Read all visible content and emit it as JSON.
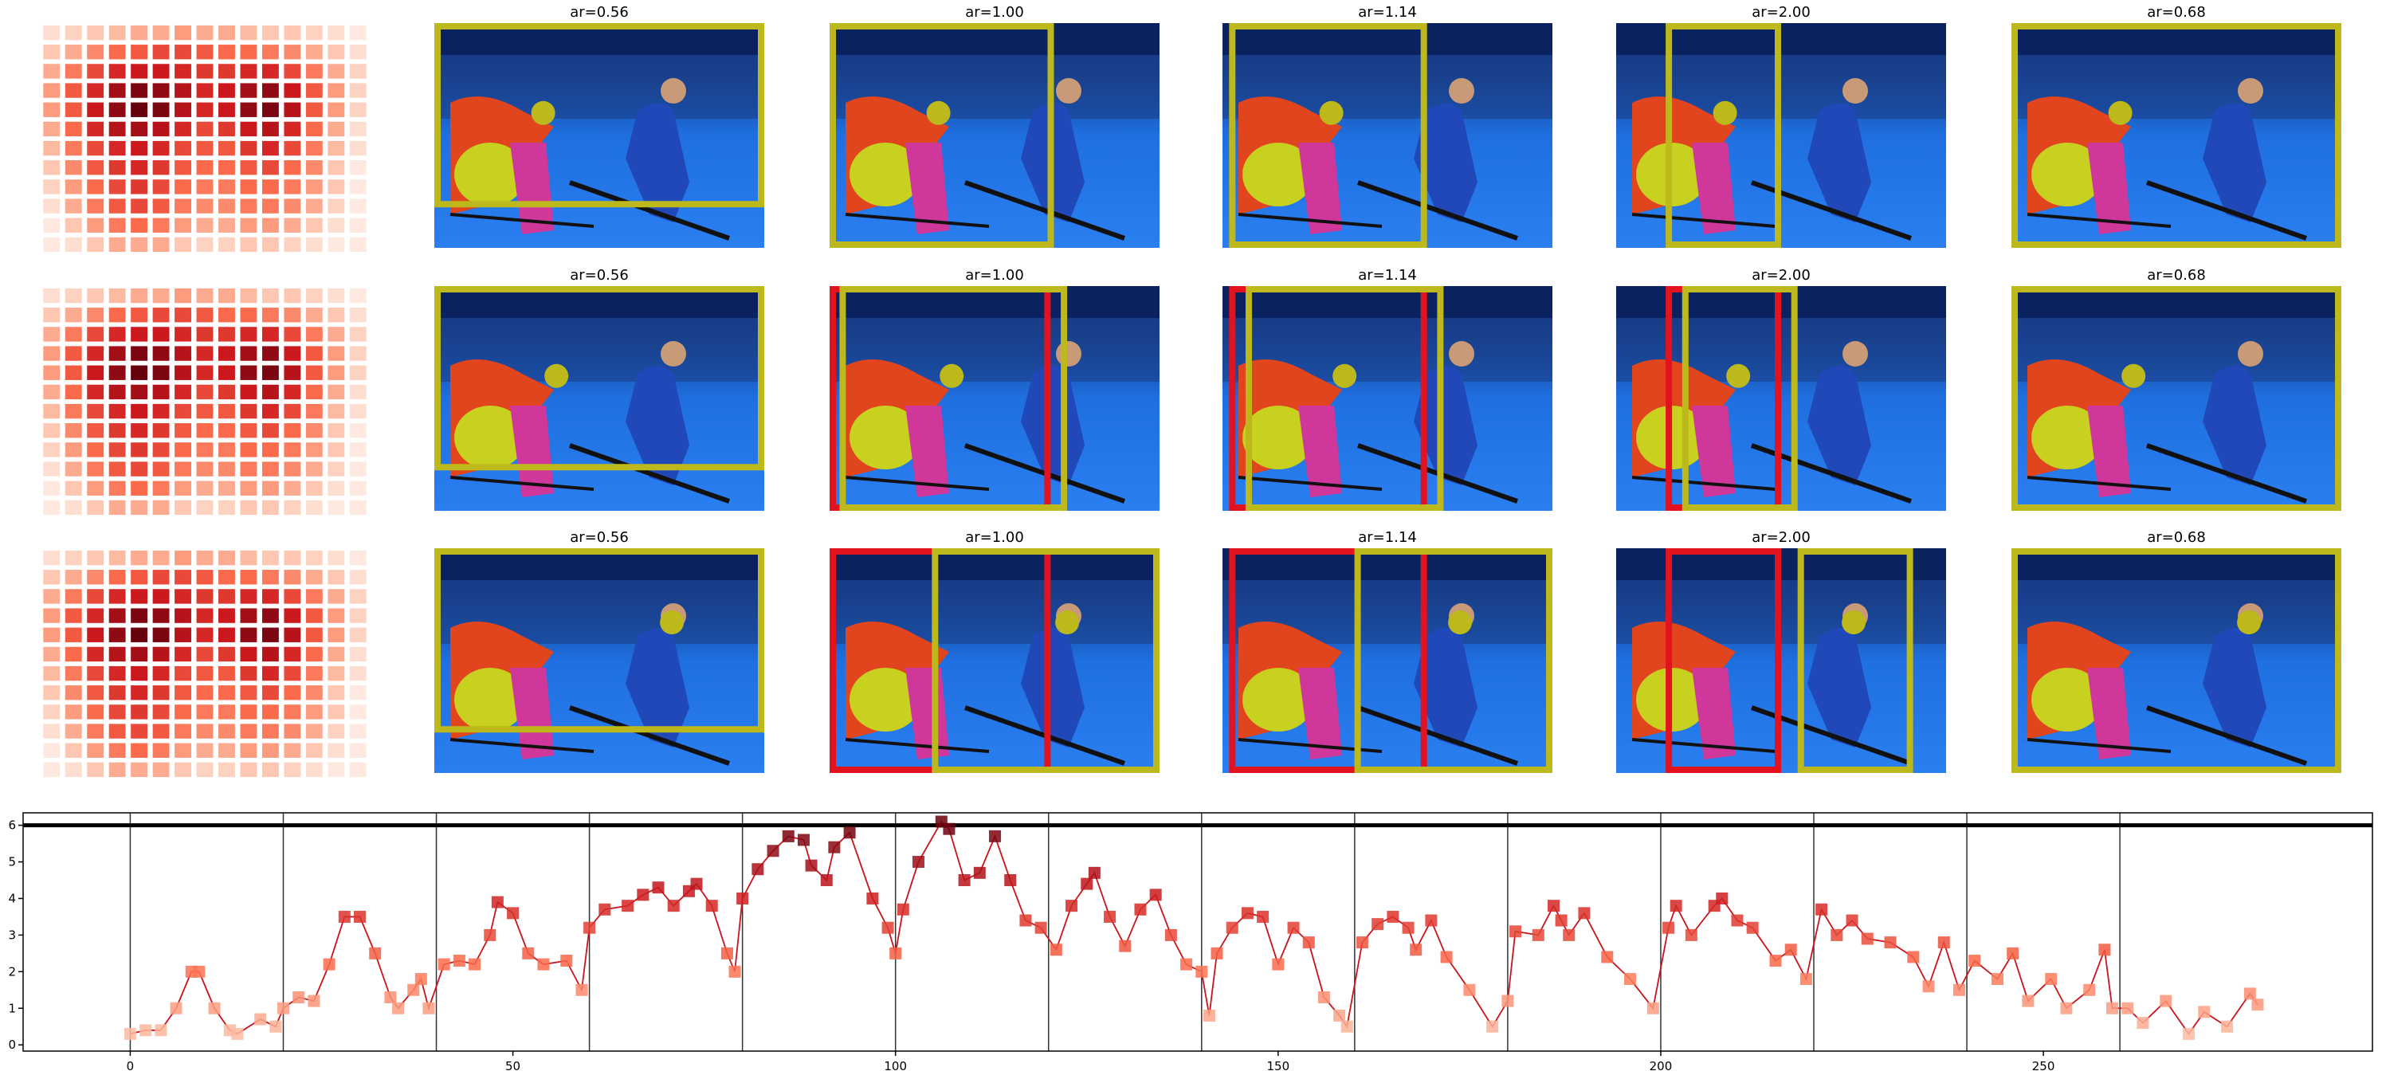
{
  "panel_titles": [
    "ar=0.56",
    "ar=1.00",
    "ar=1.14",
    "ar=2.00",
    "ar=0.68"
  ],
  "heatmap": {
    "cmap": "Reds",
    "values": [
      [
        0.1,
        0.15,
        0.2,
        0.25,
        0.3,
        0.3,
        0.35,
        0.3,
        0.3,
        0.25,
        0.2,
        0.2,
        0.15,
        0.1,
        0.05
      ],
      [
        0.2,
        0.3,
        0.4,
        0.5,
        0.55,
        0.6,
        0.6,
        0.55,
        0.5,
        0.5,
        0.45,
        0.4,
        0.3,
        0.2,
        0.1
      ],
      [
        0.3,
        0.45,
        0.6,
        0.7,
        0.75,
        0.75,
        0.7,
        0.65,
        0.65,
        0.7,
        0.7,
        0.6,
        0.45,
        0.3,
        0.15
      ],
      [
        0.35,
        0.55,
        0.7,
        0.85,
        0.95,
        0.9,
        0.8,
        0.7,
        0.75,
        0.85,
        0.9,
        0.75,
        0.55,
        0.35,
        0.15
      ],
      [
        0.35,
        0.55,
        0.75,
        0.9,
        1.0,
        0.95,
        0.8,
        0.7,
        0.75,
        0.9,
        0.95,
        0.8,
        0.55,
        0.35,
        0.15
      ],
      [
        0.3,
        0.5,
        0.7,
        0.8,
        0.85,
        0.8,
        0.7,
        0.6,
        0.65,
        0.75,
        0.8,
        0.7,
        0.5,
        0.3,
        0.1
      ],
      [
        0.25,
        0.45,
        0.6,
        0.7,
        0.75,
        0.7,
        0.6,
        0.55,
        0.55,
        0.65,
        0.7,
        0.6,
        0.45,
        0.25,
        0.1
      ],
      [
        0.2,
        0.4,
        0.55,
        0.65,
        0.7,
        0.65,
        0.55,
        0.5,
        0.5,
        0.55,
        0.6,
        0.5,
        0.4,
        0.2,
        0.05
      ],
      [
        0.15,
        0.35,
        0.5,
        0.6,
        0.65,
        0.6,
        0.5,
        0.45,
        0.45,
        0.5,
        0.5,
        0.45,
        0.35,
        0.2,
        0.05
      ],
      [
        0.1,
        0.3,
        0.45,
        0.55,
        0.6,
        0.55,
        0.45,
        0.4,
        0.4,
        0.45,
        0.45,
        0.4,
        0.3,
        0.15,
        0.05
      ],
      [
        0.05,
        0.2,
        0.35,
        0.45,
        0.5,
        0.45,
        0.35,
        0.3,
        0.3,
        0.35,
        0.35,
        0.3,
        0.2,
        0.1,
        0.05
      ],
      [
        0.05,
        0.1,
        0.2,
        0.3,
        0.3,
        0.3,
        0.2,
        0.15,
        0.15,
        0.2,
        0.2,
        0.15,
        0.1,
        0.05,
        0.05
      ]
    ]
  },
  "chart_data": {
    "type": "line",
    "x": [
      0,
      2,
      4,
      6,
      8,
      9,
      11,
      13,
      14,
      17,
      19,
      20,
      22,
      24,
      26,
      28,
      30,
      32,
      34,
      35,
      37,
      38,
      39,
      41,
      43,
      45,
      47,
      48,
      50,
      52,
      54,
      57,
      59,
      60,
      62,
      65,
      67,
      69,
      71,
      73,
      74,
      76,
      78,
      79,
      80,
      82,
      84,
      86,
      88,
      89,
      91,
      92,
      94,
      97,
      99,
      100,
      101,
      103,
      106,
      107,
      109,
      111,
      113,
      115,
      117,
      119,
      121,
      123,
      125,
      126,
      128,
      130,
      132,
      134,
      136,
      138,
      140,
      141,
      142,
      144,
      146,
      148,
      150,
      152,
      154,
      156,
      158,
      159,
      161,
      163,
      165,
      167,
      168,
      170,
      172,
      175,
      178,
      180,
      181,
      184,
      186,
      187,
      188,
      190,
      193,
      196,
      199,
      201,
      202,
      204,
      207,
      208,
      210,
      212,
      215,
      217,
      219,
      221,
      223,
      225,
      227,
      230,
      233,
      235,
      237,
      239,
      241,
      244,
      246,
      248,
      251,
      253,
      256,
      258,
      259,
      261,
      263,
      266,
      269,
      271,
      274,
      277,
      278
    ],
    "values": [
      0.3,
      0.4,
      0.4,
      1.0,
      2.0,
      2.0,
      1.0,
      0.4,
      0.3,
      0.7,
      0.5,
      1.0,
      1.3,
      1.2,
      2.2,
      3.5,
      3.5,
      2.5,
      1.3,
      1.0,
      1.5,
      1.8,
      1.0,
      2.2,
      2.3,
      2.2,
      3.0,
      3.9,
      3.6,
      2.5,
      2.2,
      2.3,
      1.5,
      3.2,
      3.7,
      3.8,
      4.1,
      4.3,
      3.8,
      4.2,
      4.4,
      3.8,
      2.5,
      2.0,
      4.0,
      4.8,
      5.3,
      5.7,
      5.6,
      4.9,
      4.5,
      5.4,
      5.8,
      4.0,
      3.2,
      2.5,
      3.7,
      5.0,
      6.1,
      5.9,
      4.5,
      4.7,
      5.7,
      4.5,
      3.4,
      3.2,
      2.6,
      3.8,
      4.4,
      4.7,
      3.5,
      2.7,
      3.7,
      4.1,
      3.0,
      2.2,
      2.0,
      0.8,
      2.5,
      3.2,
      3.6,
      3.5,
      2.2,
      3.2,
      2.8,
      1.3,
      0.8,
      0.5,
      2.8,
      3.3,
      3.5,
      3.2,
      2.6,
      3.4,
      2.4,
      1.5,
      0.5,
      1.2,
      3.1,
      3.0,
      3.8,
      3.4,
      3.0,
      3.6,
      2.4,
      1.8,
      1.0,
      3.2,
      3.8,
      3.0,
      3.8,
      4.0,
      3.4,
      3.2,
      2.3,
      2.6,
      1.8,
      3.7,
      3.0,
      3.4,
      2.9,
      2.8,
      2.4,
      1.6,
      2.8,
      1.5,
      2.3,
      1.8,
      2.5,
      1.2,
      1.8,
      1.0,
      1.5,
      2.6,
      1.0,
      1.0,
      0.6,
      1.2,
      0.3,
      0.9,
      0.5,
      1.4,
      1.1
    ],
    "cmap": "Reds",
    "line_color": "#c8141c",
    "xlim": [
      -14,
      293
    ],
    "ylim": [
      -0.17,
      6.34
    ],
    "xticks": [
      0,
      50,
      100,
      150,
      200,
      250
    ],
    "yticks": [
      0,
      1,
      2,
      3,
      4,
      5,
      6
    ],
    "vlines": [
      0,
      20,
      40,
      60,
      80,
      100,
      120,
      140,
      160,
      180,
      200,
      220,
      240,
      260
    ],
    "hline": 6
  }
}
